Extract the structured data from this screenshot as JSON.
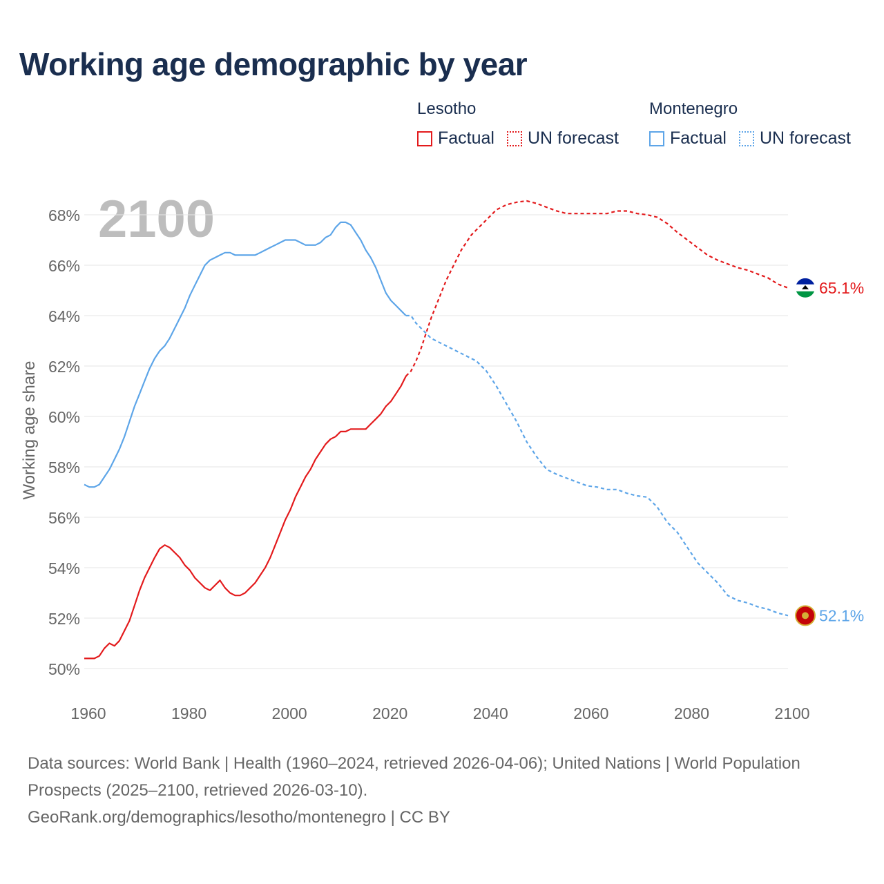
{
  "title": "Working age demographic by year",
  "legend": {
    "groups": [
      {
        "name": "Lesotho",
        "factual_label": "Factual",
        "forecast_label": "UN forecast",
        "color": "#e31a1c"
      },
      {
        "name": "Montenegro",
        "factual_label": "Factual",
        "forecast_label": "UN forecast",
        "color": "#5da5e8"
      }
    ]
  },
  "year_watermark": "2100",
  "footer": {
    "line1": "Data sources: World Bank | Health (1960–2024, retrieved 2026-04-06); United Nations | World Population Prospects (2025–2100, retrieved 2026-03-10).",
    "line2": "GeoRank.org/demographics/lesotho/montenegro | CC BY"
  },
  "chart_data": {
    "type": "line",
    "ylabel": "Working age share",
    "xlabel": "",
    "xlim": [
      1960,
      2100
    ],
    "ylim": [
      49.5,
      69
    ],
    "x_ticks": [
      1960,
      1980,
      2000,
      2020,
      2040,
      2060,
      2080,
      2100
    ],
    "x_tick_labels": [
      "1960",
      "1980",
      "2000",
      "2020",
      "2040",
      "2060",
      "2080",
      "2100"
    ],
    "y_ticks": [
      50,
      52,
      54,
      56,
      58,
      60,
      62,
      64,
      66,
      68
    ],
    "y_tick_labels": [
      "50%",
      "52%",
      "54%",
      "56%",
      "58%",
      "60%",
      "62%",
      "64%",
      "66%",
      "68%"
    ],
    "factual_end_year": 2024,
    "series": [
      {
        "name": "Lesotho",
        "color": "#e31a1c",
        "end_label": "65.1%",
        "points": [
          [
            1960,
            50.4
          ],
          [
            1962,
            50.4
          ],
          [
            1963,
            50.5
          ],
          [
            1964,
            50.8
          ],
          [
            1965,
            51.0
          ],
          [
            1966,
            50.9
          ],
          [
            1967,
            51.1
          ],
          [
            1968,
            51.5
          ],
          [
            1969,
            51.9
          ],
          [
            1970,
            52.5
          ],
          [
            1971,
            53.1
          ],
          [
            1972,
            53.6
          ],
          [
            1973,
            54.0
          ],
          [
            1974,
            54.4
          ],
          [
            1975,
            54.75
          ],
          [
            1976,
            54.9
          ],
          [
            1977,
            54.8
          ],
          [
            1978,
            54.6
          ],
          [
            1979,
            54.4
          ],
          [
            1980,
            54.1
          ],
          [
            1981,
            53.9
          ],
          [
            1982,
            53.6
          ],
          [
            1983,
            53.4
          ],
          [
            1984,
            53.2
          ],
          [
            1985,
            53.1
          ],
          [
            1986,
            53.3
          ],
          [
            1987,
            53.5
          ],
          [
            1988,
            53.2
          ],
          [
            1989,
            53.0
          ],
          [
            1990,
            52.9
          ],
          [
            1991,
            52.9
          ],
          [
            1992,
            53.0
          ],
          [
            1993,
            53.2
          ],
          [
            1994,
            53.4
          ],
          [
            1995,
            53.7
          ],
          [
            1996,
            54.0
          ],
          [
            1997,
            54.4
          ],
          [
            1998,
            54.9
          ],
          [
            1999,
            55.4
          ],
          [
            2000,
            55.9
          ],
          [
            2001,
            56.3
          ],
          [
            2002,
            56.8
          ],
          [
            2003,
            57.2
          ],
          [
            2004,
            57.6
          ],
          [
            2005,
            57.9
          ],
          [
            2006,
            58.3
          ],
          [
            2007,
            58.6
          ],
          [
            2008,
            58.9
          ],
          [
            2009,
            59.1
          ],
          [
            2010,
            59.2
          ],
          [
            2011,
            59.4
          ],
          [
            2012,
            59.4
          ],
          [
            2013,
            59.5
          ],
          [
            2014,
            59.5
          ],
          [
            2015,
            59.5
          ],
          [
            2016,
            59.5
          ],
          [
            2017,
            59.7
          ],
          [
            2018,
            59.9
          ],
          [
            2019,
            60.1
          ],
          [
            2020,
            60.4
          ],
          [
            2021,
            60.6
          ],
          [
            2022,
            60.9
          ],
          [
            2023,
            61.2
          ],
          [
            2024,
            61.6
          ],
          [
            2025,
            61.8
          ],
          [
            2026,
            62.2
          ],
          [
            2027,
            62.7
          ],
          [
            2028,
            63.3
          ],
          [
            2029,
            63.9
          ],
          [
            2030,
            64.4
          ],
          [
            2031,
            64.9
          ],
          [
            2032,
            65.4
          ],
          [
            2033,
            65.8
          ],
          [
            2034,
            66.2
          ],
          [
            2035,
            66.6
          ],
          [
            2036,
            66.9
          ],
          [
            2037,
            67.2
          ],
          [
            2038,
            67.4
          ],
          [
            2039,
            67.6
          ],
          [
            2040,
            67.8
          ],
          [
            2041,
            68.0
          ],
          [
            2042,
            68.2
          ],
          [
            2043,
            68.3
          ],
          [
            2044,
            68.4
          ],
          [
            2045,
            68.45
          ],
          [
            2046,
            68.5
          ],
          [
            2048,
            68.55
          ],
          [
            2050,
            68.45
          ],
          [
            2052,
            68.3
          ],
          [
            2054,
            68.15
          ],
          [
            2056,
            68.05
          ],
          [
            2058,
            68.05
          ],
          [
            2060,
            68.05
          ],
          [
            2062,
            68.05
          ],
          [
            2064,
            68.05
          ],
          [
            2066,
            68.15
          ],
          [
            2068,
            68.15
          ],
          [
            2070,
            68.05
          ],
          [
            2072,
            68.0
          ],
          [
            2074,
            67.9
          ],
          [
            2076,
            67.65
          ],
          [
            2078,
            67.3
          ],
          [
            2080,
            67.0
          ],
          [
            2082,
            66.7
          ],
          [
            2084,
            66.4
          ],
          [
            2086,
            66.2
          ],
          [
            2088,
            66.05
          ],
          [
            2090,
            65.9
          ],
          [
            2092,
            65.8
          ],
          [
            2094,
            65.65
          ],
          [
            2096,
            65.5
          ],
          [
            2098,
            65.25
          ],
          [
            2100,
            65.1
          ]
        ]
      },
      {
        "name": "Montenegro",
        "color": "#5da5e8",
        "end_label": "52.1%",
        "points": [
          [
            1960,
            57.3
          ],
          [
            1961,
            57.2
          ],
          [
            1962,
            57.2
          ],
          [
            1963,
            57.3
          ],
          [
            1964,
            57.6
          ],
          [
            1965,
            57.9
          ],
          [
            1966,
            58.3
          ],
          [
            1967,
            58.7
          ],
          [
            1968,
            59.2
          ],
          [
            1969,
            59.8
          ],
          [
            1970,
            60.4
          ],
          [
            1971,
            60.9
          ],
          [
            1972,
            61.4
          ],
          [
            1973,
            61.9
          ],
          [
            1974,
            62.3
          ],
          [
            1975,
            62.6
          ],
          [
            1976,
            62.8
          ],
          [
            1977,
            63.1
          ],
          [
            1978,
            63.5
          ],
          [
            1979,
            63.9
          ],
          [
            1980,
            64.3
          ],
          [
            1981,
            64.8
          ],
          [
            1982,
            65.2
          ],
          [
            1983,
            65.6
          ],
          [
            1984,
            66.0
          ],
          [
            1985,
            66.2
          ],
          [
            1986,
            66.3
          ],
          [
            1987,
            66.4
          ],
          [
            1988,
            66.5
          ],
          [
            1989,
            66.5
          ],
          [
            1990,
            66.4
          ],
          [
            1991,
            66.4
          ],
          [
            1992,
            66.4
          ],
          [
            1993,
            66.4
          ],
          [
            1994,
            66.4
          ],
          [
            1995,
            66.5
          ],
          [
            1996,
            66.6
          ],
          [
            1997,
            66.7
          ],
          [
            1998,
            66.8
          ],
          [
            1999,
            66.9
          ],
          [
            2000,
            67.0
          ],
          [
            2001,
            67.0
          ],
          [
            2002,
            67.0
          ],
          [
            2003,
            66.9
          ],
          [
            2004,
            66.8
          ],
          [
            2005,
            66.8
          ],
          [
            2006,
            66.8
          ],
          [
            2007,
            66.9
          ],
          [
            2008,
            67.1
          ],
          [
            2009,
            67.2
          ],
          [
            2010,
            67.5
          ],
          [
            2011,
            67.7
          ],
          [
            2012,
            67.7
          ],
          [
            2013,
            67.6
          ],
          [
            2014,
            67.3
          ],
          [
            2015,
            67.0
          ],
          [
            2016,
            66.6
          ],
          [
            2017,
            66.3
          ],
          [
            2018,
            65.9
          ],
          [
            2019,
            65.4
          ],
          [
            2020,
            64.9
          ],
          [
            2021,
            64.6
          ],
          [
            2022,
            64.4
          ],
          [
            2023,
            64.2
          ],
          [
            2024,
            64.0
          ],
          [
            2025,
            64.0
          ],
          [
            2026,
            63.7
          ],
          [
            2027,
            63.5
          ],
          [
            2028,
            63.3
          ],
          [
            2029,
            63.1
          ],
          [
            2030,
            63.0
          ],
          [
            2032,
            62.8
          ],
          [
            2034,
            62.6
          ],
          [
            2036,
            62.4
          ],
          [
            2038,
            62.2
          ],
          [
            2040,
            61.8
          ],
          [
            2042,
            61.2
          ],
          [
            2044,
            60.5
          ],
          [
            2046,
            59.8
          ],
          [
            2048,
            59.0
          ],
          [
            2050,
            58.4
          ],
          [
            2052,
            57.9
          ],
          [
            2054,
            57.7
          ],
          [
            2056,
            57.55
          ],
          [
            2058,
            57.4
          ],
          [
            2060,
            57.25
          ],
          [
            2062,
            57.2
          ],
          [
            2064,
            57.1
          ],
          [
            2066,
            57.1
          ],
          [
            2068,
            56.95
          ],
          [
            2070,
            56.85
          ],
          [
            2072,
            56.8
          ],
          [
            2074,
            56.4
          ],
          [
            2076,
            55.8
          ],
          [
            2078,
            55.4
          ],
          [
            2080,
            54.8
          ],
          [
            2082,
            54.2
          ],
          [
            2084,
            53.8
          ],
          [
            2086,
            53.4
          ],
          [
            2088,
            52.9
          ],
          [
            2090,
            52.7
          ],
          [
            2092,
            52.6
          ],
          [
            2094,
            52.45
          ],
          [
            2096,
            52.35
          ],
          [
            2098,
            52.2
          ],
          [
            2100,
            52.1
          ]
        ]
      }
    ]
  }
}
